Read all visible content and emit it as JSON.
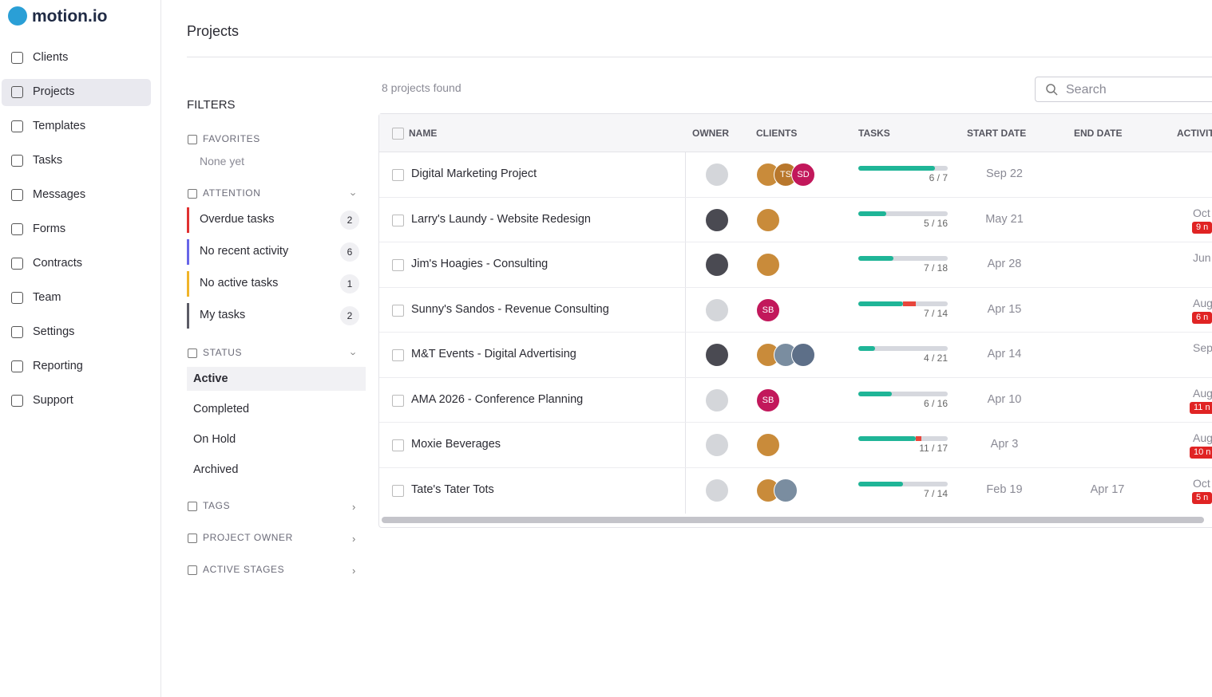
{
  "sidebar": {
    "logo": "motion.io",
    "nav": [
      "Clients",
      "Projects",
      "Templates",
      "Tasks",
      "Messages",
      "Forms",
      "Contracts",
      "Team",
      "Settings",
      "Reporting",
      "Support"
    ]
  },
  "header": {
    "title": "Projects"
  },
  "filters": {
    "title": "FILTERS",
    "favorites": {
      "label": "FAVORITES",
      "empty": "None yet"
    },
    "attention": {
      "label": "ATTENTION",
      "items": [
        {
          "label": "Overdue tasks",
          "count": 2
        },
        {
          "label": "No recent activity",
          "count": 6
        },
        {
          "label": "No active tasks",
          "count": 1
        },
        {
          "label": "My tasks",
          "count": 2
        }
      ]
    },
    "status": {
      "label": "STATUS",
      "items": [
        "Active",
        "Completed",
        "On Hold",
        "Archived"
      ]
    },
    "tags": "TAGS",
    "project_owner": "PROJECT OWNER",
    "active_stages": "ACTIVE STAGES"
  },
  "results": {
    "count_text": "8 projects found",
    "search_placeholder": "Search"
  },
  "table": {
    "columns": [
      "NAME",
      "OWNER",
      "CLIENTS",
      "TASKS",
      "START DATE",
      "END DATE",
      "ACTIVIT"
    ],
    "rows": [
      {
        "name": "Digital Marketing Project",
        "clients": [
          "TS",
          "SD"
        ],
        "tasks": {
          "done": 6,
          "overdue": 0,
          "total": 7,
          "label": "6 / 7"
        },
        "start": "Sep 22"
      },
      {
        "name": "Larry's Laundy - Website Redesign",
        "clients": [],
        "tasks": {
          "done": 5,
          "overdue": 0,
          "total": 16,
          "label": "5 / 16"
        },
        "start": "May 21",
        "activity": "Oct",
        "badge": "9 n"
      },
      {
        "name": "Jim's Hoagies - Consulting",
        "clients": [],
        "tasks": {
          "done": 7,
          "overdue": 0,
          "total": 18,
          "label": "7 / 18"
        },
        "start": "Apr 28",
        "activity": "Jun"
      },
      {
        "name": "Sunny's Sandos - Revenue Consulting",
        "clients": [
          "SB"
        ],
        "tasks": {
          "done": 7,
          "overdue": 2,
          "total": 14,
          "label": "7 / 14"
        },
        "start": "Apr 15",
        "activity": "Aug",
        "badge": "6 n"
      },
      {
        "name": "M&T Events - Digital Advertising",
        "clients": [],
        "tasks": {
          "done": 4,
          "overdue": 0,
          "total": 21,
          "label": "4 / 21"
        },
        "start": "Apr 14",
        "activity": "Sep"
      },
      {
        "name": "AMA 2026 - Conference Planning",
        "clients": [
          "SB"
        ],
        "tasks": {
          "done": 6,
          "overdue": 0,
          "total": 16,
          "label": "6 / 16"
        },
        "start": "Apr 10",
        "activity": "Aug",
        "badge": "11 n"
      },
      {
        "name": "Moxie Beverages",
        "clients": [],
        "tasks": {
          "done": 11,
          "overdue": 1,
          "total": 17,
          "label": "11 / 17"
        },
        "start": "Apr 3",
        "activity": "Aug",
        "badge": "10 n"
      },
      {
        "name": "Tate's Tater Tots",
        "clients": [],
        "tasks": {
          "done": 7,
          "overdue": 0,
          "total": 14,
          "label": "7 / 14"
        },
        "start": "Feb 19",
        "end": "Apr 17",
        "activity": "Oct",
        "badge": "5 n"
      }
    ]
  }
}
